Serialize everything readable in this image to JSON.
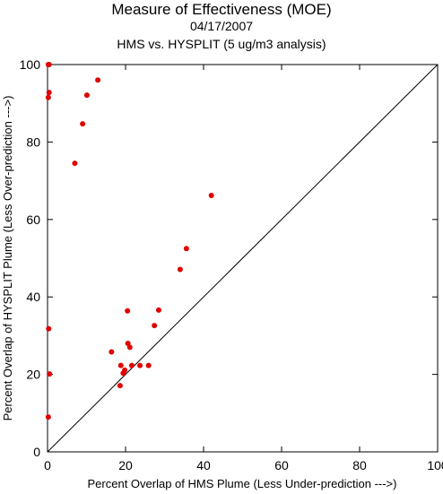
{
  "chart_data": {
    "type": "scatter",
    "title": "Measure of Effectiveness (MOE)",
    "subtitle": "04/17/2007",
    "subtitle2": "HMS vs. HYSPLIT  (5 ug/m3 analysis)",
    "xlabel": "Percent Overlap of HMS Plume (Less Under-prediction --->)",
    "ylabel": "Percent Overlap of HYSPLIT Plume (Less Over-prediction --->)",
    "xlim": [
      0,
      100
    ],
    "ylim": [
      0,
      100
    ],
    "xticks": [
      0,
      20,
      40,
      60,
      80,
      100
    ],
    "yticks": [
      0,
      20,
      40,
      60,
      80,
      100
    ],
    "reference_line": "y = x",
    "point_color": "#e00000",
    "points": [
      [
        0.2,
        100
      ],
      [
        0.4,
        100
      ],
      [
        0.4,
        92.8
      ],
      [
        0.2,
        91.5
      ],
      [
        10.1,
        92.1
      ],
      [
        12.9,
        96.0
      ],
      [
        9.0,
        84.7
      ],
      [
        7.0,
        74.5
      ],
      [
        42.0,
        66.2
      ],
      [
        35.6,
        52.5
      ],
      [
        34.0,
        47.1
      ],
      [
        20.5,
        36.4
      ],
      [
        28.5,
        36.6
      ],
      [
        27.4,
        32.6
      ],
      [
        0.3,
        31.8
      ],
      [
        16.4,
        25.8
      ],
      [
        20.6,
        28.0
      ],
      [
        21.1,
        27.0
      ],
      [
        18.8,
        22.3
      ],
      [
        21.6,
        22.3
      ],
      [
        23.7,
        22.3
      ],
      [
        25.9,
        22.3
      ],
      [
        19.8,
        21.1
      ],
      [
        19.4,
        20.3
      ],
      [
        0.5,
        20.1
      ],
      [
        18.6,
        17.1
      ],
      [
        0.2,
        9.0
      ]
    ]
  }
}
